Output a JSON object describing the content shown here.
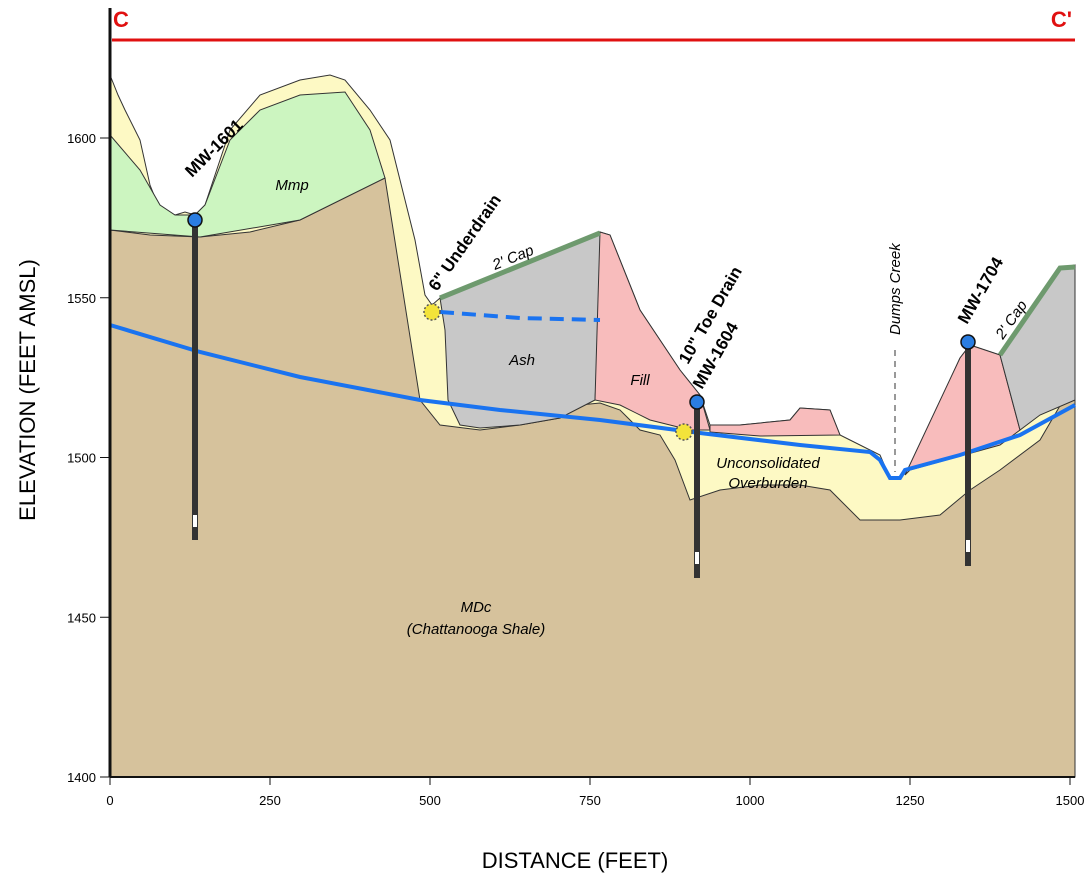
{
  "section": {
    "start": "C",
    "end": "C'"
  },
  "axes": {
    "x_title": "DISTANCE (FEET)",
    "y_title": "ELEVATION (FEET AMSL)",
    "x_ticks": [
      0,
      250,
      500,
      750,
      1000,
      1250,
      1500
    ],
    "y_ticks": [
      1400,
      1450,
      1500,
      1550,
      1600
    ]
  },
  "units": {
    "mmp": "Mmp",
    "ash": "Ash",
    "fill": "Fill",
    "overburden_1": "Unconsolidated",
    "overburden_2": "Overburden",
    "shale_1": "MDc",
    "shale_2": "(Chattanooga Shale)",
    "cap_left": "2' Cap",
    "cap_right": "2' Cap",
    "creek": "Dumps Creek"
  },
  "wells": {
    "mw1601": "MW-1601",
    "mw1604": "MW-1604",
    "mw1704": "MW-1704"
  },
  "drains": {
    "underdrain": "6\" Underdrain",
    "toe_drain": "10\" Toe Drain"
  }
}
